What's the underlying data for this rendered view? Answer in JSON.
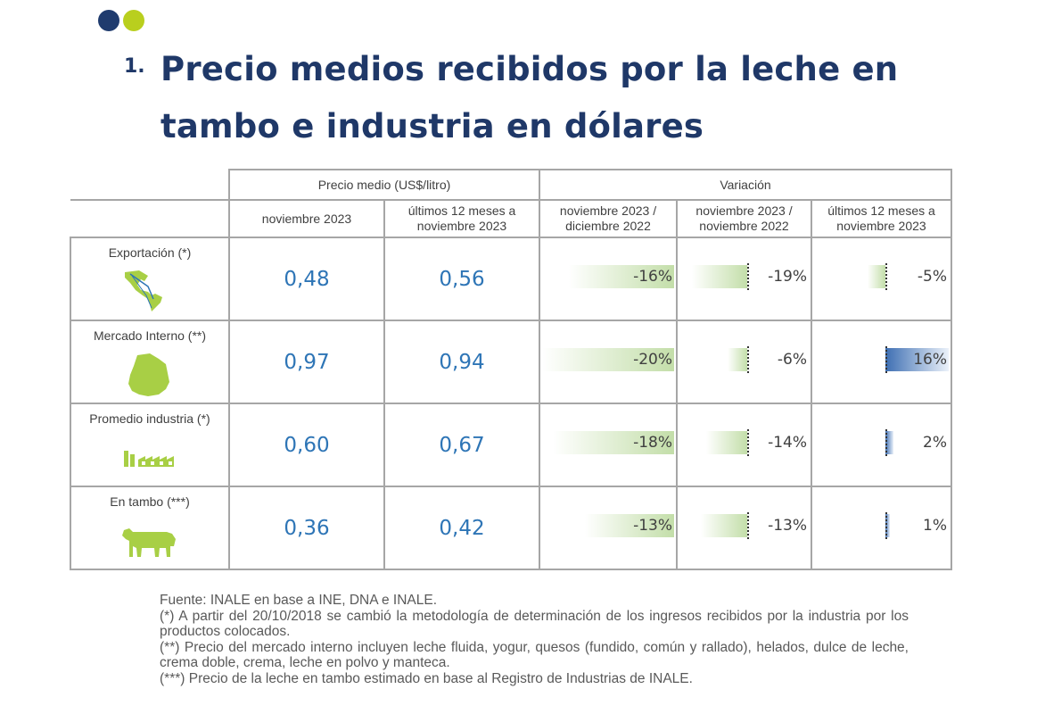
{
  "header": {
    "number": "1.",
    "title": "Precio medios recibidos por la leche en tambo e industria en dólares"
  },
  "colors": {
    "brand_dark": "#1f3868",
    "brand_lime": "#b9cf1e",
    "value_blue": "#2e75b6",
    "neg_green": "#c3dea9",
    "pos_blue": "#3e6fb3"
  },
  "table": {
    "group_headers": {
      "price": "Precio medio (US$/litro)",
      "variation": "Variación"
    },
    "sub_headers": [
      "noviembre 2023",
      "últimos 12 meses a noviembre 2023",
      "noviembre 2023 / diciembre 2022",
      "noviembre 2023 / noviembre 2022",
      "últimos 12 meses a noviembre 2023"
    ],
    "rows": [
      {
        "label": "Exportación (*)",
        "icon": "americas-map-icon",
        "price_nov": "0,48",
        "price_12m": "0,56",
        "var_dic": {
          "text": "-16%",
          "value": -16
        },
        "var_nov": {
          "text": "-19%",
          "value": -19
        },
        "var_12m": {
          "text": "-5%",
          "value": -5
        }
      },
      {
        "label": "Mercado Interno (**)",
        "icon": "uruguay-map-icon",
        "price_nov": "0,97",
        "price_12m": "0,94",
        "var_dic": {
          "text": "-20%",
          "value": -20
        },
        "var_nov": {
          "text": "-6%",
          "value": -6
        },
        "var_12m": {
          "text": "16%",
          "value": 16
        }
      },
      {
        "label": "Promedio industria (*)",
        "icon": "factory-icon",
        "price_nov": "0,60",
        "price_12m": "0,67",
        "var_dic": {
          "text": "-18%",
          "value": -18
        },
        "var_nov": {
          "text": "-14%",
          "value": -14
        },
        "var_12m": {
          "text": "2%",
          "value": 2
        }
      },
      {
        "label": "En tambo (***)",
        "icon": "cow-icon",
        "price_nov": "0,36",
        "price_12m": "0,42",
        "var_dic": {
          "text": "-13%",
          "value": -13
        },
        "var_nov": {
          "text": "-13%",
          "value": -13
        },
        "var_12m": {
          "text": "1%",
          "value": 1
        }
      }
    ]
  },
  "notes": {
    "source": "Fuente: INALE en base a INE, DNA e INALE.",
    "note1": "(*) A partir del 20/10/2018 se cambió la metodología de determinación de los ingresos recibidos por la industria por los productos colocados.",
    "note2": "(**) Precio del mercado interno incluyen leche fluida, yogur, quesos (fundido, común y rallado), helados, dulce de leche, crema doble, crema, leche en polvo y manteca.",
    "note3": "(***) Precio de la leche en tambo estimado en base al Registro de Industrias de INALE."
  }
}
